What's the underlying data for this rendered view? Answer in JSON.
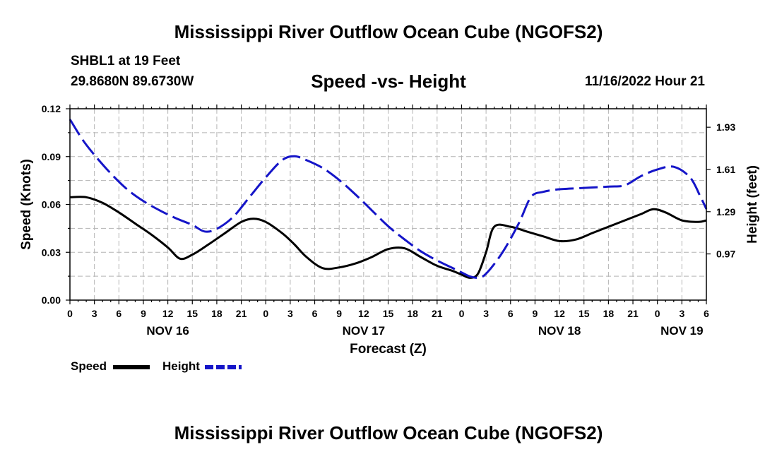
{
  "header": {
    "title": "Mississippi River Outflow Ocean Cube (NGOFS2)",
    "station": "SHBL1 at 19 Feet",
    "coords": "29.8680N  89.6730W",
    "subtitle": "Speed -vs- Height",
    "date": "11/16/2022 Hour 21"
  },
  "footer": {
    "title": "Mississippi River Outflow Ocean Cube (NGOFS2)"
  },
  "legend": {
    "speed_label": "Speed",
    "height_label": "Height"
  },
  "colors": {
    "speed": "#000000",
    "height": "#1515c8",
    "grid": "#b4b4b4"
  },
  "chart_data": {
    "type": "line",
    "title": "Speed -vs- Height",
    "xlabel": "Forecast (Z)",
    "ylabel": "Speed (Knots)",
    "y2label": "Height (feet)",
    "xlim": [
      0,
      78
    ],
    "ylim": [
      0,
      0.12
    ],
    "y2lim": [
      0.62,
      2.07
    ],
    "x_ticks": [
      0,
      3,
      6,
      9,
      12,
      15,
      18,
      21,
      24,
      27,
      30,
      33,
      36,
      39,
      42,
      45,
      48,
      51,
      54,
      57,
      60,
      63,
      66,
      69,
      72,
      75,
      78
    ],
    "x_tick_labels": [
      "0",
      "3",
      "6",
      "9",
      "12",
      "15",
      "18",
      "21",
      "0",
      "3",
      "6",
      "9",
      "12",
      "15",
      "18",
      "21",
      "0",
      "3",
      "6",
      "9",
      "12",
      "15",
      "18",
      "21",
      "0",
      "3",
      "6"
    ],
    "date_labels": [
      {
        "x": 12,
        "label": "NOV 16"
      },
      {
        "x": 36,
        "label": "NOV 17"
      },
      {
        "x": 60,
        "label": "NOV 18"
      },
      {
        "x": 75,
        "label": "NOV 19"
      }
    ],
    "y_ticks": [
      0.0,
      0.03,
      0.06,
      0.09,
      0.12
    ],
    "y_tick_labels": [
      "0.00",
      "0.03",
      "0.06",
      "0.09",
      "0.12"
    ],
    "y2_ticks": [
      0.97,
      1.29,
      1.61,
      1.93
    ],
    "y2_tick_labels": [
      "0.97",
      "1.29",
      "1.61",
      "1.93"
    ],
    "grid": true,
    "series": [
      {
        "name": "Speed",
        "axis": "left",
        "style": "solid",
        "x": [
          0,
          2,
          4,
          6,
          8,
          10,
          12,
          13.5,
          15,
          17,
          19,
          21,
          22.5,
          24,
          26,
          27.5,
          29,
          31,
          33,
          35,
          37,
          39,
          41,
          43,
          45,
          46.8,
          48,
          49,
          50,
          51,
          52,
          54,
          56,
          58,
          60,
          62,
          64,
          66,
          68,
          70,
          71.5,
          73,
          75,
          77,
          78
        ],
        "values": [
          0.0645,
          0.0645,
          0.061,
          0.055,
          0.048,
          0.041,
          0.033,
          0.026,
          0.0285,
          0.035,
          0.042,
          0.049,
          0.051,
          0.049,
          0.042,
          0.035,
          0.027,
          0.02,
          0.0205,
          0.023,
          0.027,
          0.032,
          0.0325,
          0.027,
          0.0215,
          0.0185,
          0.016,
          0.014,
          0.0165,
          0.03,
          0.046,
          0.046,
          0.043,
          0.04,
          0.037,
          0.038,
          0.042,
          0.046,
          0.05,
          0.054,
          0.057,
          0.055,
          0.05,
          0.049,
          0.05
        ]
      },
      {
        "name": "Height",
        "axis": "right",
        "style": "dashed",
        "x": [
          0,
          1.5,
          3,
          5,
          7,
          9,
          11,
          13,
          15,
          16.5,
          18,
          20,
          22,
          24,
          26,
          27.5,
          29,
          31,
          33,
          35,
          37,
          39,
          41,
          43,
          45,
          47,
          48,
          49,
          50,
          51,
          53,
          55,
          56.5,
          58,
          60,
          63,
          66,
          68,
          70,
          72,
          74,
          76,
          77.3,
          78
        ],
        "values": [
          1.99,
          1.84,
          1.72,
          1.58,
          1.46,
          1.37,
          1.3,
          1.24,
          1.19,
          1.14,
          1.16,
          1.25,
          1.4,
          1.55,
          1.68,
          1.71,
          1.68,
          1.62,
          1.53,
          1.42,
          1.3,
          1.18,
          1.08,
          0.99,
          0.92,
          0.86,
          0.83,
          0.8,
          0.79,
          0.82,
          0.98,
          1.2,
          1.4,
          1.44,
          1.46,
          1.47,
          1.48,
          1.49,
          1.56,
          1.61,
          1.63,
          1.55,
          1.4,
          1.31
        ]
      }
    ]
  }
}
